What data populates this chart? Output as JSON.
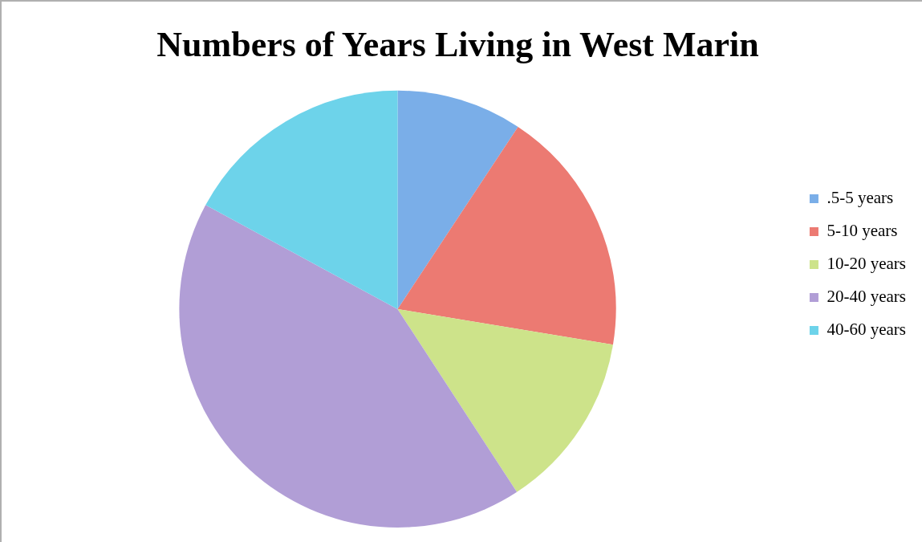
{
  "chart_data": {
    "type": "pie",
    "title": "Numbers of Years Living in West Marin",
    "categories": [
      ".5-5 years",
      "5-10 years",
      "10-20 years",
      "20-40 years",
      "40-60 years"
    ],
    "values": [
      9.3,
      18.3,
      13.2,
      42.1,
      17.1
    ],
    "colors": [
      "#7aaee8",
      "#ec7a72",
      "#cde38a",
      "#b19ed6",
      "#6dd3ea"
    ],
    "legend": "right"
  }
}
